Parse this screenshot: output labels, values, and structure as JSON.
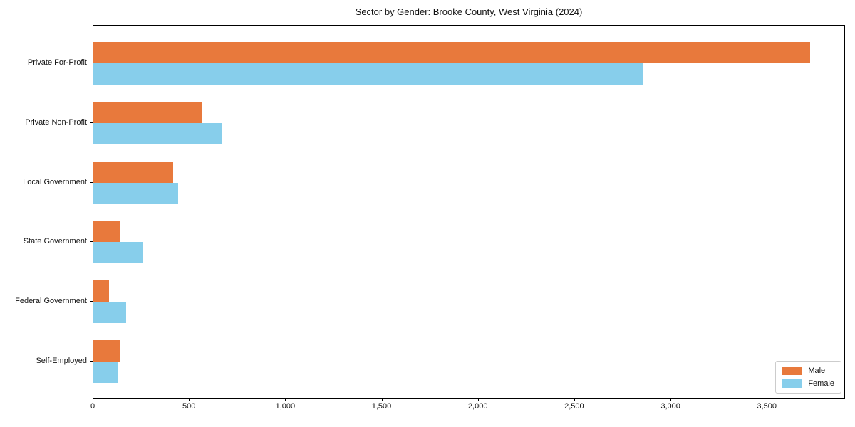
{
  "chart_data": {
    "type": "bar",
    "orientation": "horizontal",
    "title": "Sector by Gender: Brooke County, West Virginia (2024)",
    "xlabel": "",
    "ylabel": "",
    "categories": [
      "Private For-Profit",
      "Private Non-Profit",
      "Local Government",
      "State Government",
      "Federal Government",
      "Self-Employed"
    ],
    "series": [
      {
        "name": "Male",
        "color": "#e8793c",
        "values": [
          3720,
          565,
          415,
          140,
          80,
          140
        ]
      },
      {
        "name": "Female",
        "color": "#87ceeb",
        "values": [
          2850,
          665,
          440,
          255,
          170,
          130
        ]
      }
    ],
    "xlim": [
      0,
      3906
    ],
    "xticks": [
      0,
      500,
      1000,
      1500,
      2000,
      2500,
      3000,
      3500
    ],
    "xtick_labels": [
      "0",
      "500",
      "1,000",
      "1,500",
      "2,000",
      "2,500",
      "3,000",
      "3,500"
    ],
    "grid": false,
    "legend_position": "lower right"
  }
}
